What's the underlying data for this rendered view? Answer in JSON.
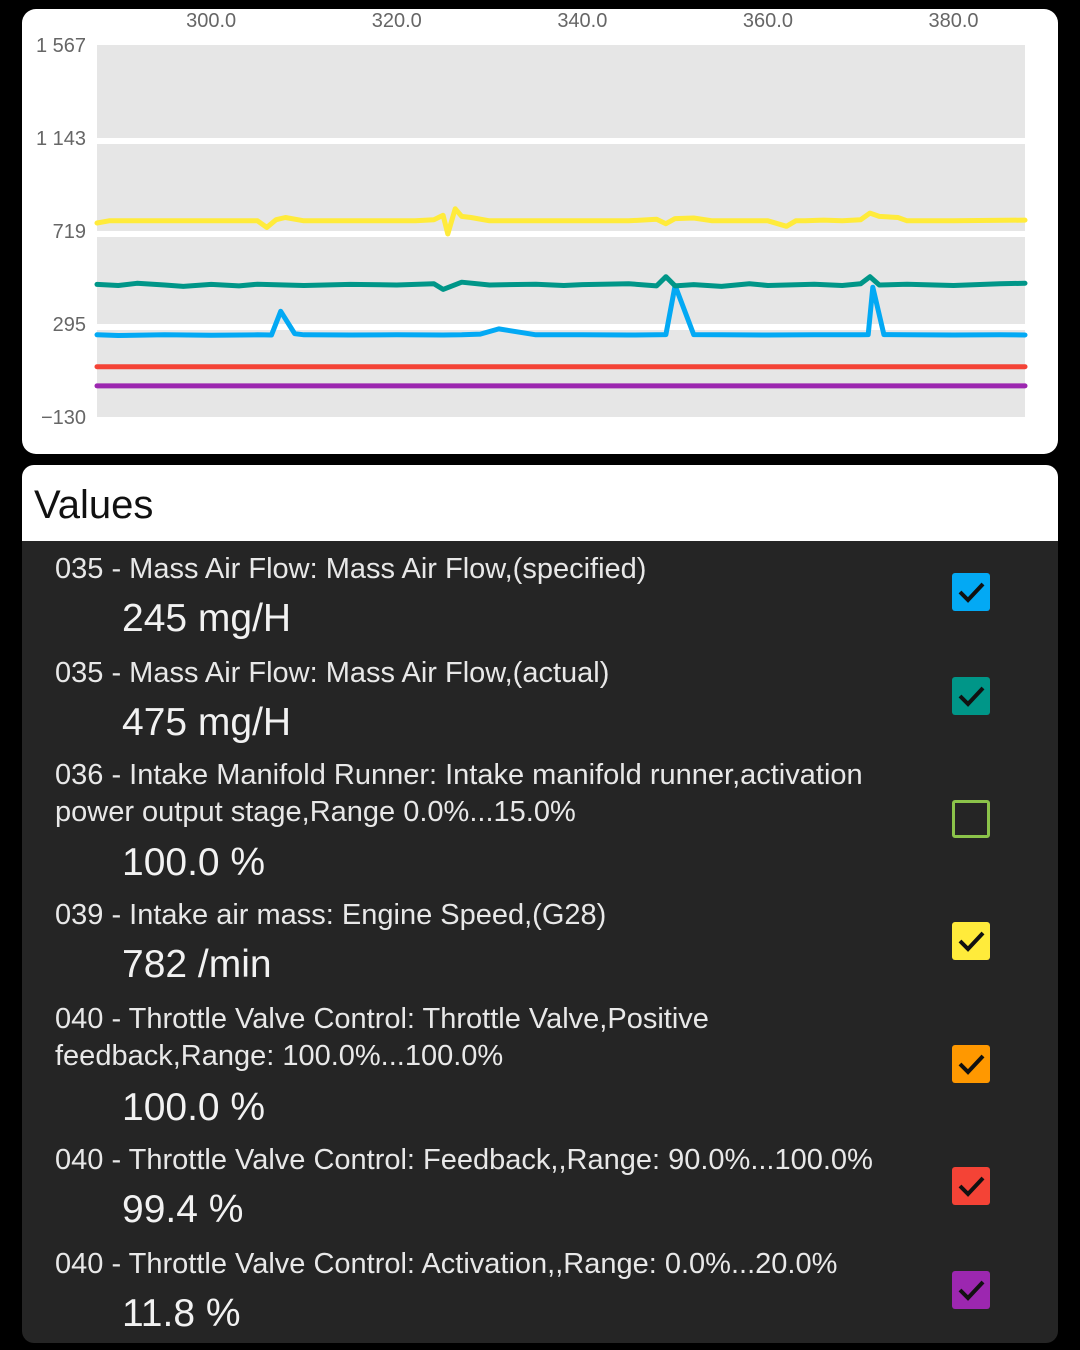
{
  "chart_data": {
    "type": "line",
    "x_ticks": [
      "300.0",
      "320.0",
      "340.0",
      "360.0",
      "380.0"
    ],
    "y_ticks": [
      "1 567",
      "1 143",
      "719",
      "295",
      "−130"
    ],
    "xlim": [
      287.7,
      387.7
    ],
    "ylim": [
      -130,
      1567
    ],
    "grid": true,
    "series": [
      {
        "name": "035 - Mass Air Flow: Mass Air Flow,(specified)",
        "color": "#03A9F4",
        "x": [
          287.7,
          290,
          295,
          300,
          305,
          306.5,
          307.5,
          309,
          310,
          315,
          320,
          325,
          327,
          329,
          331,
          335,
          340,
          345,
          348,
          349,
          350,
          352,
          355,
          360,
          365,
          370,
          370.8,
          371.3,
          372.5,
          375,
          380,
          385,
          387.7
        ],
        "values": [
          245,
          242,
          245,
          243,
          245,
          244,
          352,
          250,
          245,
          244,
          245,
          244,
          245,
          248,
          272,
          245,
          245,
          244,
          245,
          246,
          470,
          246,
          245,
          244,
          245,
          245,
          246,
          462,
          246,
          245,
          244,
          245,
          244
        ]
      },
      {
        "name": "035 - Mass Air Flow: Mass Air Flow,(actual)",
        "color": "#009688",
        "x": [
          287.7,
          290,
          292,
          295,
          297,
          300,
          303,
          305,
          310,
          315,
          320,
          324,
          325,
          327,
          330,
          335,
          338,
          340,
          345,
          348,
          349,
          350,
          352,
          355,
          358,
          360,
          365,
          368,
          370,
          371,
          372,
          375,
          380,
          385,
          387.7
        ],
        "values": [
          475,
          470,
          480,
          472,
          466,
          475,
          468,
          476,
          470,
          475,
          472,
          478,
          452,
          485,
          472,
          476,
          470,
          474,
          478,
          468,
          510,
          468,
          474,
          466,
          478,
          470,
          476,
          470,
          478,
          510,
          472,
          476,
          470,
          478,
          480
        ]
      },
      {
        "name": "039 - Intake air mass: Engine Speed,(G28)",
        "color": "#FFEB3B",
        "x": [
          287.7,
          289,
          295,
          305,
          306,
          307,
          308,
          310,
          315,
          320,
          322,
          324,
          325,
          325.5,
          326.3,
          327,
          328,
          330,
          335,
          340,
          345,
          348,
          349,
          350,
          352,
          354,
          360,
          362,
          363,
          364,
          366,
          368,
          370,
          371,
          372,
          374,
          375,
          380,
          387.7
        ],
        "values": [
          755,
          765,
          765,
          765,
          735,
          770,
          780,
          765,
          765,
          765,
          765,
          770,
          790,
          705,
          820,
          785,
          780,
          765,
          765,
          765,
          765,
          772,
          752,
          775,
          778,
          765,
          765,
          740,
          765,
          765,
          768,
          765,
          770,
          800,
          785,
          780,
          765,
          765,
          768
        ]
      },
      {
        "name": "040 - Throttle Valve Control: Feedback,,Range: 90.0%...100.0%",
        "color": "#F44336",
        "x": [
          287.7,
          387.7
        ],
        "values": [
          99.4,
          99.4
        ]
      },
      {
        "name": "040 - Throttle Valve Control: Activation,,Range: 0.0%...20.0%",
        "color": "#9C27B0",
        "x": [
          287.7,
          387.7
        ],
        "values": [
          11.8,
          11.8
        ]
      }
    ]
  },
  "values_panel": {
    "title": "Values",
    "rows": [
      {
        "label": "035 - Mass Air Flow: Mass Air Flow,(specified)",
        "value": "245 mg/H",
        "color": "#03A9F4",
        "checked": true
      },
      {
        "label": "035 - Mass Air Flow: Mass Air Flow,(actual)",
        "value": "475 mg/H",
        "color": "#009688",
        "checked": true
      },
      {
        "label": "036 - Intake Manifold Runner: Intake manifold runner,activation power output stage,Range 0.0%...15.0%",
        "value": "100.0 %",
        "color": "#8BC34A",
        "checked": false
      },
      {
        "label": "039 - Intake air mass: Engine Speed,(G28)",
        "value": "782 /min",
        "color": "#FFEB3B",
        "checked": true
      },
      {
        "label": "040 - Throttle Valve Control: Throttle Valve,Positive feedback,Range: 100.0%...100.0%",
        "value": "100.0 %",
        "color": "#FF9800",
        "checked": true
      },
      {
        "label": "040 - Throttle Valve Control: Feedback,,Range: 90.0%...100.0%",
        "value": "99.4 %",
        "color": "#F44336",
        "checked": true
      },
      {
        "label": "040 - Throttle Valve Control: Activation,,Range: 0.0%...20.0%",
        "value": "11.8 %",
        "color": "#9C27B0",
        "checked": true
      }
    ]
  }
}
